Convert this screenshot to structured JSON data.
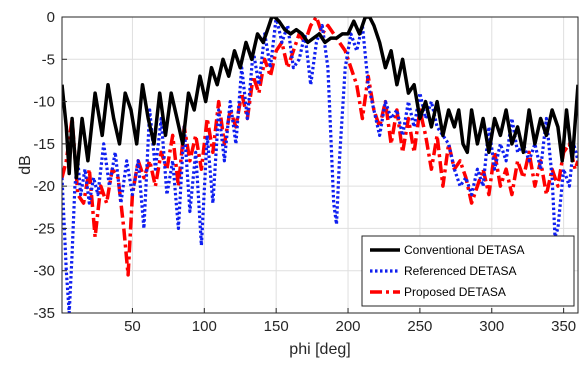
{
  "chart_data": {
    "type": "line",
    "xlabel": "phi [deg]",
    "ylabel": "dB",
    "xlim": [
      1,
      360
    ],
    "ylim": [
      -35,
      0
    ],
    "xticks": [
      50,
      100,
      150,
      200,
      250,
      300,
      350
    ],
    "yticks": [
      0,
      -5,
      -10,
      -15,
      -20,
      -25,
      -30,
      -35
    ],
    "grid": true,
    "legend_position": "bottom-right",
    "series": [
      {
        "name": "Conventional DETASA",
        "color": "#000000",
        "style": "solid",
        "x": [
          1,
          4,
          6,
          8,
          11,
          15,
          19,
          24,
          29,
          33,
          37,
          41,
          45,
          49,
          53,
          57,
          61,
          65,
          69,
          73,
          77,
          81,
          85,
          89,
          93,
          97,
          101,
          105,
          109,
          113,
          117,
          121,
          125,
          129,
          133,
          137,
          141,
          145,
          147,
          149,
          152,
          156,
          160,
          164,
          168,
          172,
          176,
          180,
          184,
          188,
          192,
          196,
          200,
          204,
          208,
          212,
          215,
          218,
          222,
          226,
          230,
          234,
          238,
          242,
          246,
          250,
          254,
          258,
          262,
          266,
          270,
          274,
          277,
          280,
          283,
          286,
          290,
          294,
          298,
          302,
          306,
          310,
          314,
          318,
          322,
          326,
          330,
          334,
          338,
          342,
          346,
          349,
          352,
          356,
          360
        ],
        "y": [
          -8,
          -13,
          -18.5,
          -12,
          -19,
          -12,
          -17,
          -9,
          -14,
          -8,
          -12,
          -15,
          -9,
          -11,
          -15,
          -8,
          -12,
          -15,
          -9,
          -14,
          -9,
          -12,
          -15,
          -9,
          -11,
          -7,
          -10,
          -6,
          -8,
          -5,
          -7,
          -4,
          -6,
          -3,
          -5,
          -2,
          -3,
          -1,
          0,
          0,
          -0.5,
          -1.5,
          -2,
          -1.5,
          -2,
          -3,
          -2.5,
          -2,
          -3,
          -2.5,
          -2.5,
          -2,
          -2,
          -0.5,
          -2,
          0,
          0,
          -1,
          -3,
          -6,
          -4,
          -8,
          -5,
          -9,
          -8,
          -12,
          -10,
          -13,
          -10,
          -14,
          -11,
          -13,
          -11,
          -15,
          -16,
          -11,
          -15,
          -12,
          -16,
          -12,
          -14,
          -11,
          -15,
          -13,
          -16,
          -11,
          -15,
          -12,
          -14,
          -11,
          -13,
          -17,
          -11,
          -17,
          -8
        ]
      },
      {
        "name": "Referenced DETASA",
        "color": "#0f1ff0",
        "style": "dotted",
        "x": [
          1,
          4,
          6,
          8,
          10,
          12,
          14,
          17,
          20,
          23,
          26,
          30,
          34,
          38,
          42,
          46,
          50,
          54,
          58,
          62,
          66,
          70,
          74,
          78,
          82,
          86,
          90,
          94,
          98,
          102,
          106,
          110,
          114,
          118,
          122,
          126,
          130,
          134,
          138,
          142,
          146,
          150,
          154,
          158,
          162,
          166,
          170,
          174,
          178,
          182,
          186,
          190,
          192,
          194,
          198,
          202,
          206,
          210,
          214,
          218,
          222,
          226,
          230,
          234,
          238,
          242,
          246,
          250,
          254,
          258,
          262,
          266,
          270,
          274,
          278,
          282,
          286,
          290,
          294,
          298,
          302,
          306,
          310,
          314,
          318,
          322,
          326,
          330,
          334,
          338,
          342,
          344,
          346,
          350,
          354,
          357,
          360
        ],
        "y": [
          -19,
          -30,
          -35,
          -28,
          -20,
          -17,
          -21,
          -18,
          -22,
          -19,
          -21,
          -15,
          -20,
          -16,
          -22,
          -17,
          -21,
          -17,
          -25,
          -11,
          -18,
          -12,
          -21,
          -17,
          -25,
          -13,
          -23,
          -16,
          -27,
          -14,
          -22,
          -11,
          -17,
          -10,
          -15,
          -6,
          -12,
          -4,
          -8,
          -2,
          -6,
          0,
          -3,
          -1,
          -6,
          -5,
          -2,
          -8,
          -3,
          -1,
          -6,
          -22,
          -24.5,
          -17,
          -6,
          -2,
          -4,
          -1,
          -8,
          -11,
          -14,
          -10,
          -12,
          -11,
          -14,
          -10,
          -13,
          -9,
          -12,
          -10,
          -13,
          -14,
          -15,
          -18,
          -20,
          -19,
          -21,
          -18,
          -20,
          -13,
          -18,
          -15,
          -17,
          -12,
          -16,
          -15,
          -17,
          -15,
          -18,
          -12,
          -19,
          -26,
          -25,
          -18,
          -20,
          -15,
          -17
        ]
      },
      {
        "name": "Proposed DETASA",
        "color": "#ff0000",
        "style": "dash-dot",
        "x": [
          1,
          4,
          8,
          12,
          16,
          20,
          24,
          28,
          32,
          36,
          40,
          44,
          47,
          50,
          54,
          58,
          62,
          66,
          70,
          74,
          78,
          82,
          86,
          90,
          94,
          98,
          102,
          106,
          110,
          114,
          118,
          122,
          126,
          130,
          134,
          138,
          142,
          146,
          150,
          154,
          158,
          162,
          166,
          170,
          174,
          178,
          182,
          186,
          190,
          194,
          198,
          202,
          206,
          210,
          214,
          218,
          222,
          226,
          230,
          234,
          238,
          242,
          246,
          250,
          254,
          258,
          262,
          266,
          270,
          274,
          278,
          282,
          286,
          290,
          294,
          298,
          302,
          306,
          310,
          314,
          318,
          322,
          326,
          330,
          334,
          338,
          342,
          346,
          350,
          354,
          358,
          360
        ],
        "y": [
          -19,
          -17,
          -12,
          -21,
          -22,
          -18,
          -26,
          -20,
          -22,
          -18,
          -19,
          -25,
          -30.5,
          -21,
          -17,
          -19,
          -17,
          -20,
          -16,
          -18,
          -14,
          -20,
          -13,
          -17,
          -14,
          -18,
          -12,
          -16,
          -10,
          -15,
          -11,
          -13,
          -9,
          -12,
          -7,
          -9,
          -5,
          -7,
          -4,
          -3,
          -6,
          -4,
          -2,
          -3,
          -1,
          0,
          -2,
          -1,
          -2,
          -3,
          -4,
          -6,
          -8,
          -12,
          -7,
          -11,
          -13,
          -10,
          -15,
          -11,
          -16,
          -12,
          -16,
          -11,
          -14,
          -18,
          -14,
          -20,
          -15,
          -18,
          -17,
          -19,
          -22,
          -20,
          -18,
          -21,
          -16,
          -20,
          -18,
          -21,
          -17,
          -19,
          -16,
          -20,
          -17,
          -21,
          -18,
          -20,
          -16,
          -15,
          -18,
          -17
        ]
      }
    ]
  }
}
